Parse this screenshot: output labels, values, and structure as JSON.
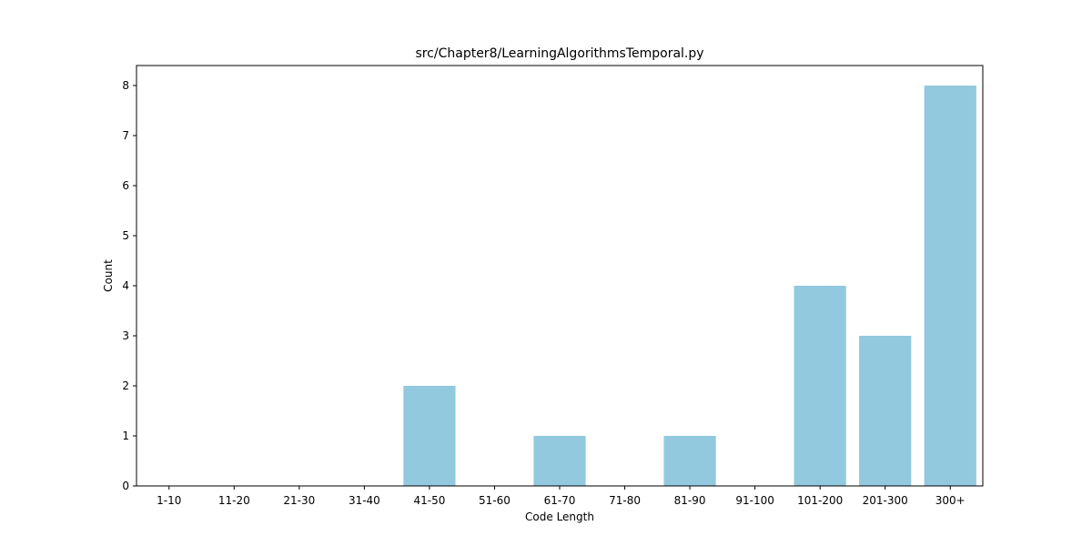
{
  "chart_data": {
    "type": "bar",
    "title": "src/Chapter8/LearningAlgorithmsTemporal.py",
    "xlabel": "Code Length",
    "ylabel": "Count",
    "categories": [
      "1-10",
      "11-20",
      "21-30",
      "31-40",
      "41-50",
      "51-60",
      "61-70",
      "71-80",
      "81-90",
      "91-100",
      "101-200",
      "201-300",
      "300+"
    ],
    "values": [
      0,
      0,
      0,
      0,
      2,
      0,
      1,
      0,
      1,
      0,
      4,
      3,
      8
    ],
    "ylim": [
      0,
      8.4
    ],
    "yticks": [
      0,
      1,
      2,
      3,
      4,
      5,
      6,
      7,
      8
    ],
    "bar_color": "#92c9de",
    "grid": false,
    "legend": "none"
  }
}
